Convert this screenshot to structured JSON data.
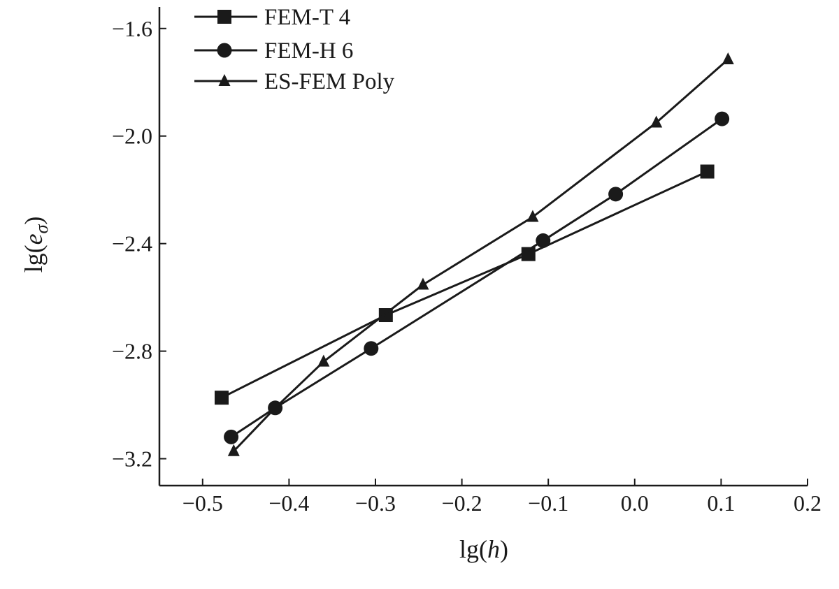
{
  "chart_data": {
    "type": "line",
    "title": "",
    "xlabel_prefix": "lg",
    "xlabel_var": "h",
    "ylabel_prefix": "lg",
    "ylabel_var": "e",
    "ylabel_sub": "σ",
    "xlim": [
      -0.55,
      0.2
    ],
    "ylim": [
      -3.3,
      -1.52
    ],
    "xticks": [
      -0.5,
      -0.4,
      -0.3,
      -0.2,
      -0.1,
      0.0,
      0.1,
      0.2
    ],
    "xtick_labels": [
      "−0.5",
      "−0.4",
      "−0.3",
      "−0.2",
      "−0.1",
      "0.0",
      "0.1",
      "0.2"
    ],
    "yticks": [
      -3.2,
      -2.8,
      -2.4,
      -2.0,
      -1.6
    ],
    "ytick_labels": [
      "−3.2",
      "−2.8",
      "−2.4",
      "−2.0",
      "−1.6"
    ],
    "grid": false,
    "legend_position": "top-left",
    "series": [
      {
        "name": "FEM-T 4",
        "marker": "square",
        "x": [
          -0.478,
          -0.288,
          -0.123,
          0.084
        ],
        "y": [
          -2.973,
          -2.666,
          -2.439,
          -2.132
        ]
      },
      {
        "name": "FEM-H 6",
        "marker": "circle",
        "x": [
          -0.467,
          -0.416,
          -0.305,
          -0.106,
          -0.022,
          0.101
        ],
        "y": [
          -3.119,
          -3.011,
          -2.79,
          -2.389,
          -2.216,
          -1.936
        ]
      },
      {
        "name": "ES-FEM Poly",
        "marker": "triangle",
        "x": [
          -0.464,
          -0.416,
          -0.36,
          -0.245,
          -0.118,
          0.025,
          0.108
        ],
        "y": [
          -3.172,
          -3.011,
          -2.839,
          -2.553,
          -2.301,
          -1.95,
          -1.715
        ]
      }
    ]
  }
}
